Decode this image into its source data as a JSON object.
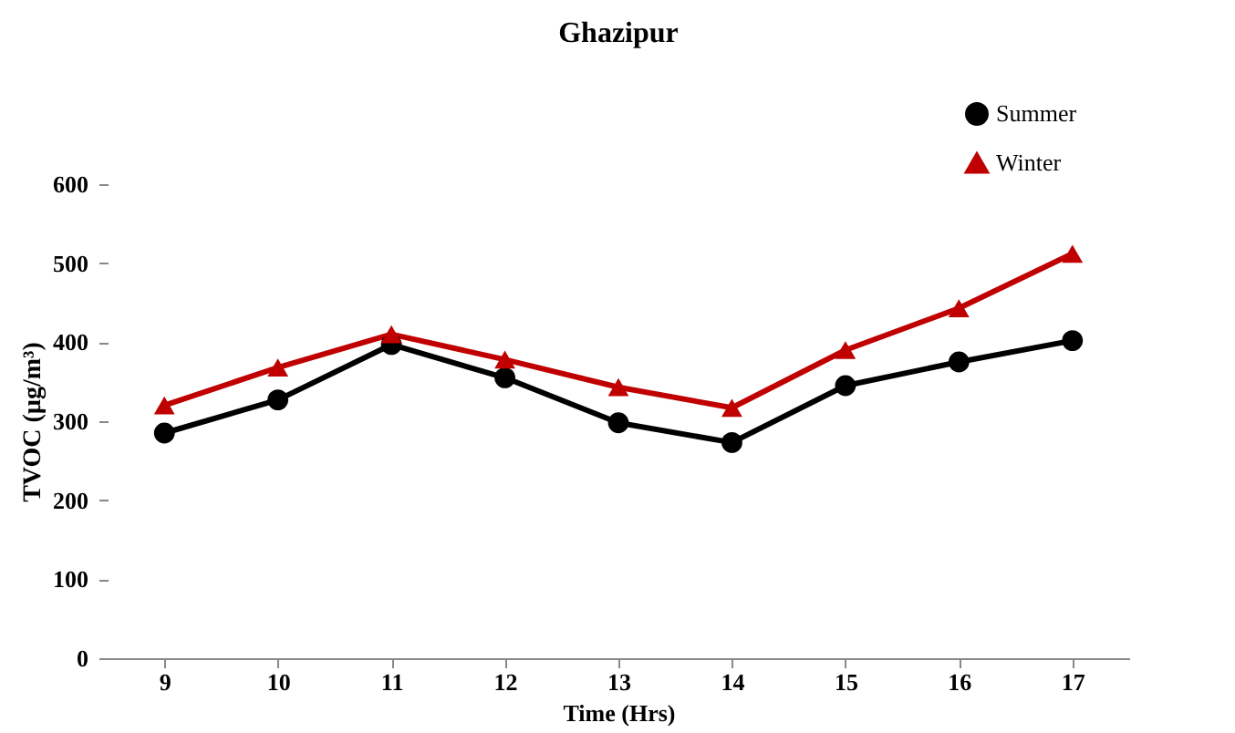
{
  "chart_data": {
    "type": "line",
    "title": "Ghazipur",
    "xlabel": "Time (Hrs)",
    "ylabel": "TVOC (µg/m³)",
    "categories": [
      "9",
      "10",
      "11",
      "12",
      "13",
      "14",
      "15",
      "16",
      "17"
    ],
    "series": [
      {
        "name": "Summer",
        "color": "#000000",
        "marker": "circle",
        "values": [
          285,
          327,
          397,
          355,
          298,
          273,
          345,
          375,
          402
        ]
      },
      {
        "name": "Winter",
        "color": "#c00000",
        "marker": "triangle",
        "values": [
          320,
          368,
          410,
          378,
          343,
          317,
          390,
          443,
          512
        ]
      }
    ],
    "ylim": [
      0,
      600
    ],
    "yticks": [
      0,
      100,
      200,
      300,
      400,
      500,
      600
    ],
    "grid": false,
    "legend": "top right",
    "line_style": "solid"
  }
}
